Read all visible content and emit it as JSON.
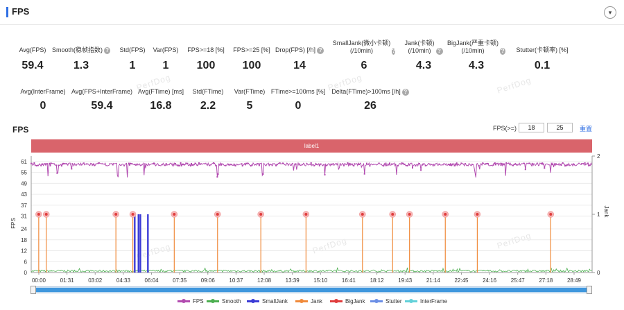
{
  "header": {
    "title": "FPS",
    "toggle_icon": "▾"
  },
  "stats_row1": [
    {
      "label": "Avg(FPS)",
      "value": "59.4",
      "help": false
    },
    {
      "label": "Smooth(稳帧指数)",
      "value": "1.3",
      "help": true
    },
    {
      "label": "Std(FPS)",
      "value": "1",
      "help": false
    },
    {
      "label": "Var(FPS)",
      "value": "1",
      "help": false
    },
    {
      "label": "FPS>=18 [%]",
      "value": "100",
      "help": false
    },
    {
      "label": "FPS>=25 [%]",
      "value": "100",
      "help": false
    },
    {
      "label": "Drop(FPS) [/h]",
      "value": "14",
      "help": true
    },
    {
      "label": "SmallJank(微小卡顿)\n(/10min)",
      "value": "6",
      "help": true
    },
    {
      "label": "Jank(卡顿)\n(/10min)",
      "value": "4.3",
      "help": true
    },
    {
      "label": "BigJank(严重卡顿)\n(/10min)",
      "value": "4.3",
      "help": true
    },
    {
      "label": "Stutter(卡顿率) [%]",
      "value": "0.1",
      "help": false
    }
  ],
  "stats_row2": [
    {
      "label": "Avg(InterFrame)",
      "value": "0",
      "help": false
    },
    {
      "label": "Avg(FPS+InterFrame)",
      "value": "59.4",
      "help": false
    },
    {
      "label": "Avg(FTime) [ms]",
      "value": "16.8",
      "help": false
    },
    {
      "label": "Std(FTime)",
      "value": "2.2",
      "help": false
    },
    {
      "label": "Var(FTime)",
      "value": "5",
      "help": false
    },
    {
      "label": "FTime>=100ms [%]",
      "value": "0",
      "help": false
    },
    {
      "label": "Delta(FTime)>100ms [/h]",
      "value": "26",
      "help": true
    }
  ],
  "help_glyph": "?",
  "watermark": "PerfDog",
  "chart": {
    "title": "FPS",
    "fps_threshold_label": "FPS(>=)",
    "fps_threshold_1": "18",
    "fps_threshold_2": "25",
    "reset_label": "重置",
    "band_label": "label1"
  },
  "chart_data": {
    "type": "line",
    "ylabel": "FPS",
    "y2label": "Jank",
    "y_ticks": [
      0,
      6,
      12,
      18,
      24,
      31,
      37,
      43,
      49,
      55,
      61
    ],
    "y2_ticks": [
      0,
      1,
      2
    ],
    "x_ticks": [
      "00:00",
      "01:31",
      "03:02",
      "04:33",
      "06:04",
      "07:35",
      "09:06",
      "10:37",
      "12:08",
      "13:39",
      "15:10",
      "16:41",
      "18:12",
      "19:43",
      "21:14",
      "22:45",
      "24:16",
      "25:47",
      "27:18",
      "28:49"
    ],
    "fps_typical": 59.4,
    "fps_dips_at_min": [
      0.9,
      1.4,
      4.6,
      5.1,
      6.0,
      9.9,
      12.3,
      15.6,
      17.7,
      19.4,
      23.6,
      25.2,
      27.6
    ],
    "bigjank_at_min": [
      0.4,
      0.8,
      4.5,
      5.4,
      7.6,
      9.9,
      12.2,
      14.6,
      17.6,
      19.2,
      20.1,
      22.0,
      23.7,
      27.6
    ],
    "smalljank_at_min": [
      5.5,
      5.7,
      5.8,
      6.2
    ],
    "series": [
      {
        "name": "FPS",
        "color": "#b24bb0"
      },
      {
        "name": "Smooth",
        "color": "#4caf50"
      },
      {
        "name": "SmallJank",
        "color": "#3b3bd6"
      },
      {
        "name": "Jank",
        "color": "#f08a3a"
      },
      {
        "name": "BigJank",
        "color": "#e03c3c"
      },
      {
        "name": "Stutter",
        "color": "#6b8fe6"
      },
      {
        "name": "InterFrame",
        "color": "#63d1d9"
      }
    ]
  }
}
